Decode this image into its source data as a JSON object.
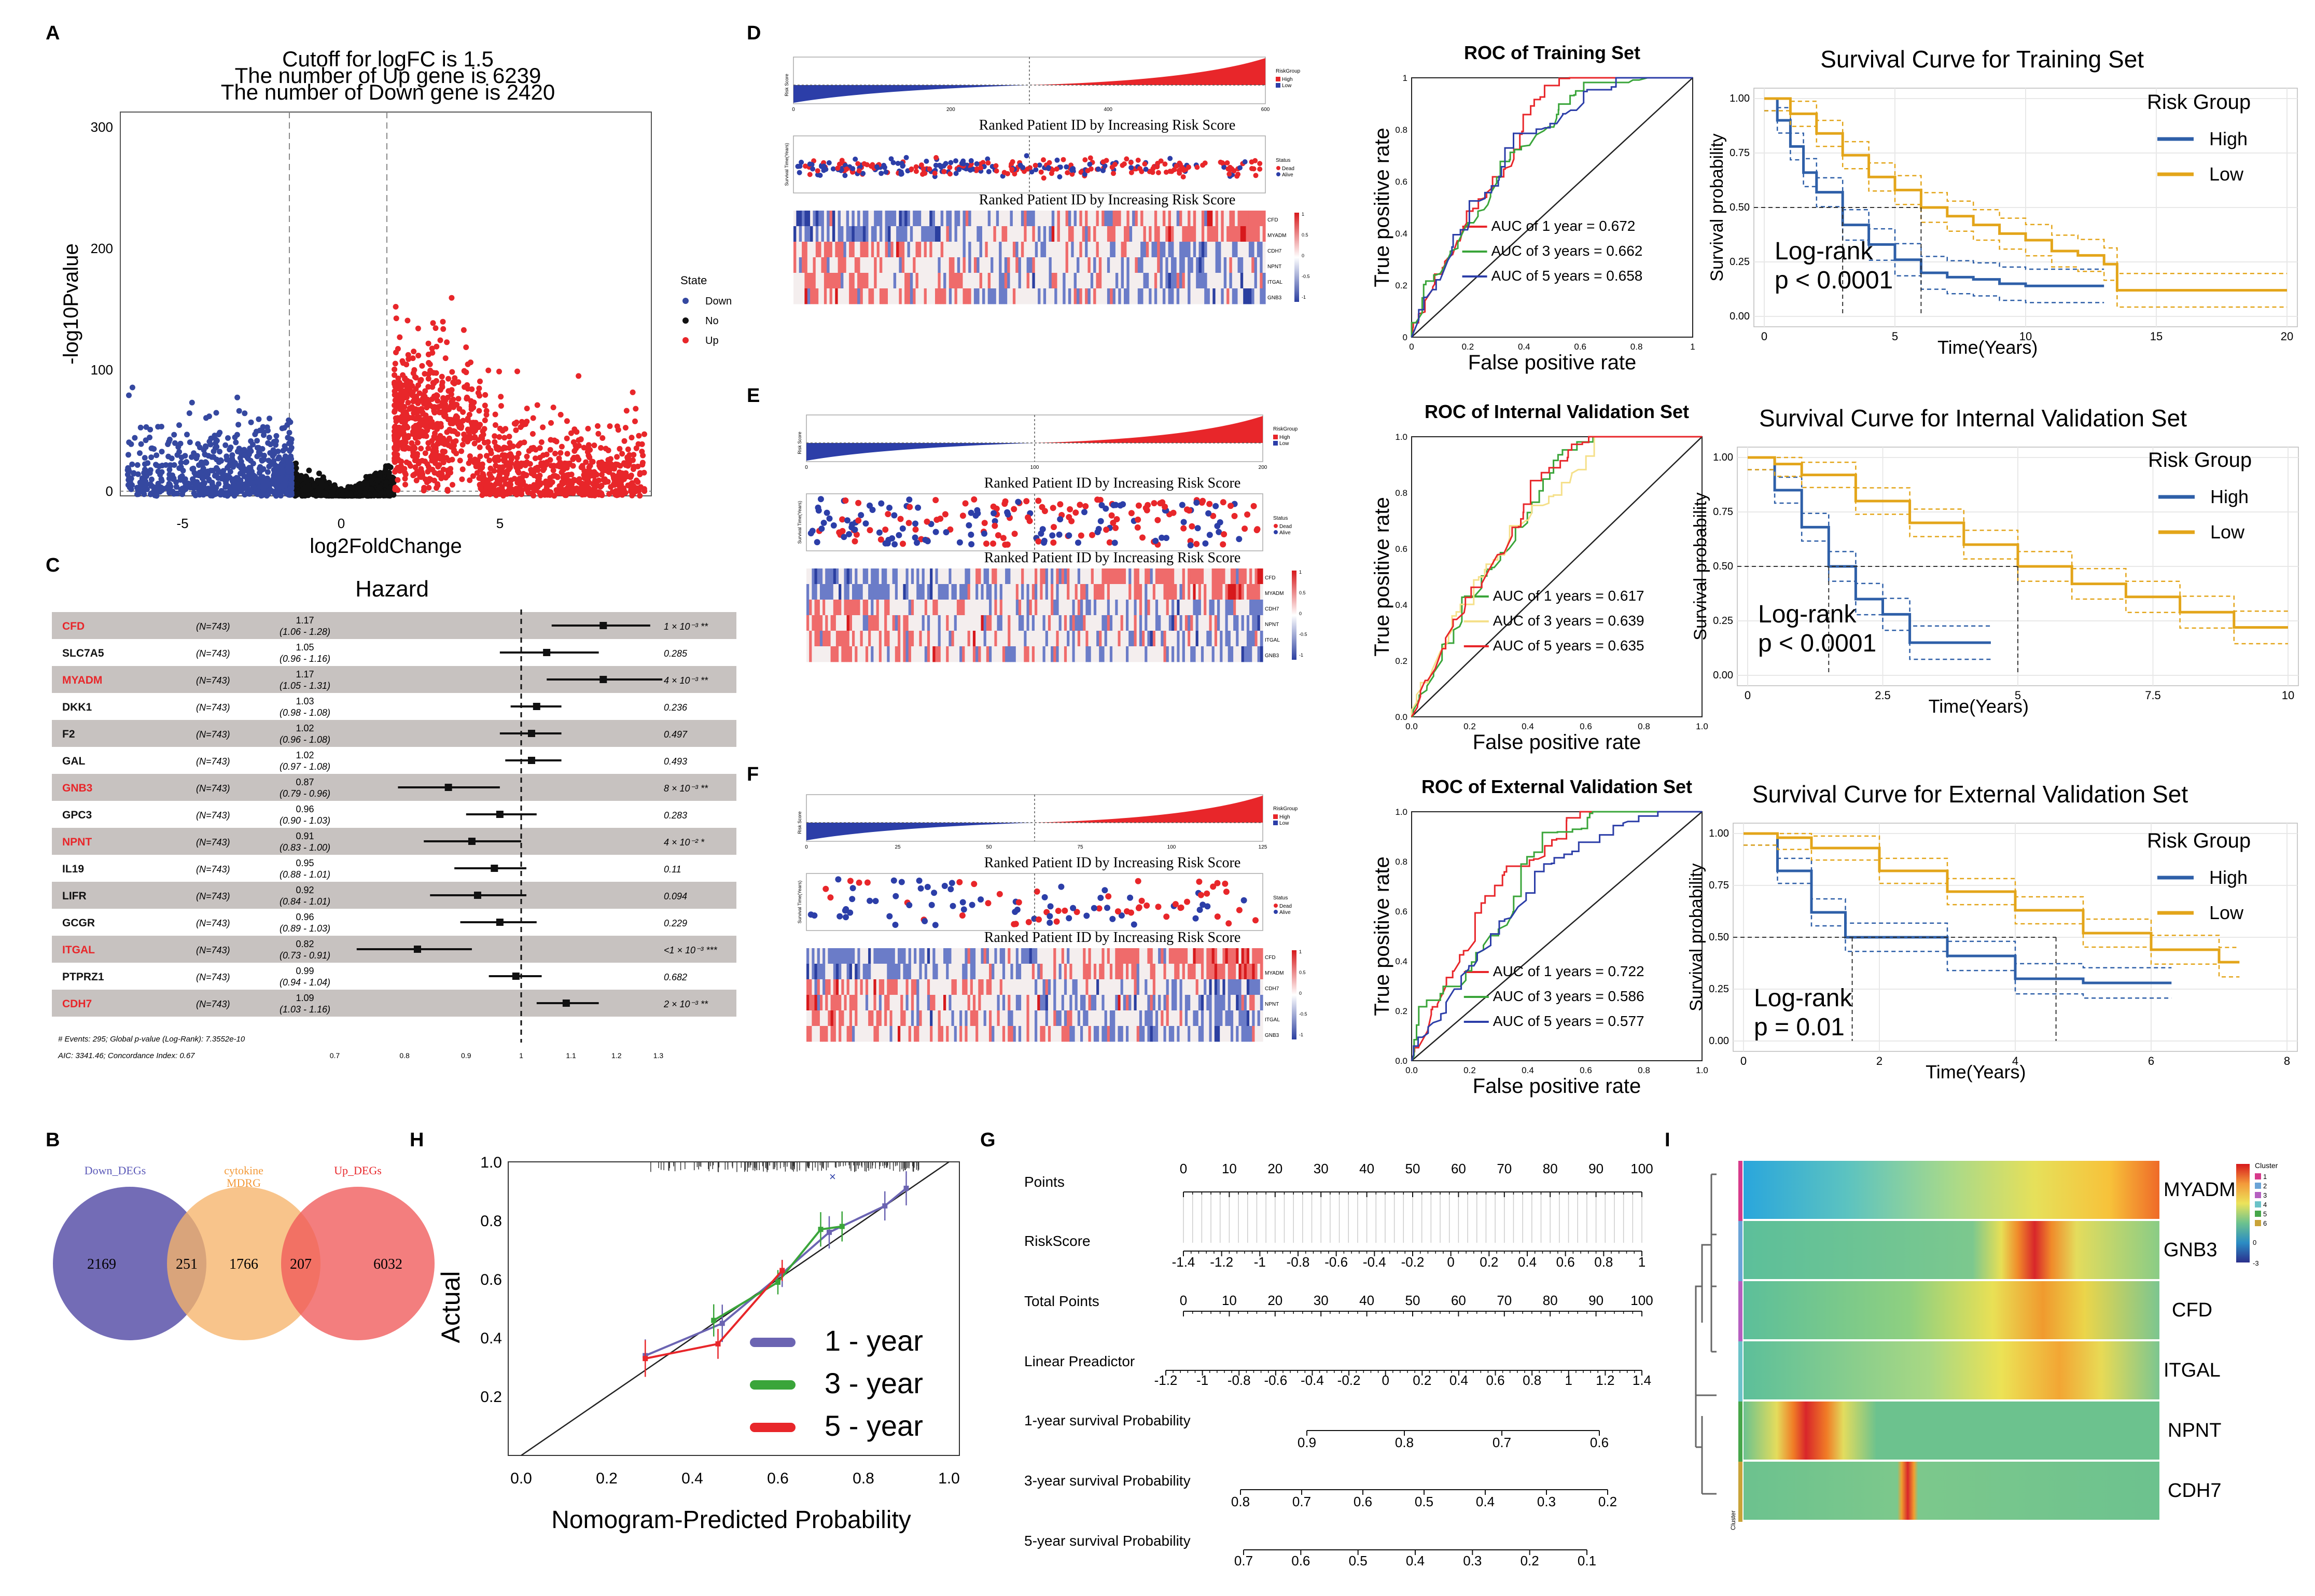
{
  "panels": {
    "A": "A",
    "B": "B",
    "C": "C",
    "D": "D",
    "E": "E",
    "F": "F",
    "G": "G",
    "H": "H",
    "I": "I"
  },
  "colors": {
    "down": "#3548a0",
    "no": "#111111",
    "up": "#e8262a",
    "high": "#2e5fa8",
    "low": "#e3a51a",
    "red": "#e8262a",
    "green": "#3aa53a",
    "blue": "#2c3ea8",
    "yellow": "#f5e08a",
    "purple": "#6b64b2",
    "orange": "#f6b46a",
    "salmon": "#f05a5a"
  },
  "volcano": {
    "title": [
      "Cutoff for logFC is 1.5",
      "The number of Up gene is 6239",
      "The number of Down gene is 2420"
    ],
    "xlabel": "log2FoldChange",
    "ylabel": "-log10Pvalue",
    "xticks": [
      "-5",
      "0",
      "5"
    ],
    "yticks": [
      "0",
      "100",
      "200",
      "300"
    ],
    "legend_title": "State",
    "legend": [
      "Down",
      "No",
      "Up"
    ]
  },
  "chart_data": [
    {
      "type": "scatter",
      "id": "volcano",
      "title": "Cutoff for logFC is 1.5",
      "xlabel": "log2FoldChange",
      "ylabel": "-log10Pvalue",
      "xlim": [
        -6.5,
        9
      ],
      "ylim": [
        0,
        315
      ],
      "thresholds": {
        "logFC": 1.5
      },
      "series": [
        {
          "name": "Down",
          "count": 2420
        },
        {
          "name": "No"
        },
        {
          "name": "Up",
          "count": 6239
        }
      ]
    },
    {
      "type": "forest",
      "id": "hazard",
      "title": "Hazard",
      "genes": [
        "CFD",
        "SLC7A5",
        "MYADM",
        "DKK1",
        "F2",
        "GAL",
        "GNB3",
        "GPC3",
        "NPNT",
        "IL19",
        "LIFR",
        "GCGR",
        "ITGAL",
        "PTPRZ1",
        "CDH7"
      ],
      "hr": [
        1.17,
        1.05,
        1.17,
        1.03,
        1.02,
        1.02,
        0.87,
        0.96,
        0.91,
        0.95,
        0.92,
        0.96,
        0.82,
        0.99,
        1.09
      ],
      "lo": [
        1.06,
        0.96,
        1.05,
        0.98,
        0.96,
        0.97,
        0.79,
        0.9,
        0.83,
        0.88,
        0.84,
        0.89,
        0.73,
        0.94,
        1.03
      ],
      "hi": [
        1.28,
        1.16,
        1.31,
        1.08,
        1.08,
        1.08,
        0.96,
        1.03,
        1.0,
        1.01,
        1.01,
        1.03,
        0.91,
        1.04,
        1.16
      ]
    },
    {
      "type": "venn",
      "id": "venn",
      "sets": [
        "Down_DEGs",
        "cytokine MDRG",
        "Up_DEGs"
      ],
      "values": [
        2169,
        251,
        1766,
        207,
        6032
      ]
    },
    {
      "type": "line",
      "id": "roc_training",
      "title": "ROC of Training Set",
      "series": [
        {
          "name": "AUC of 1 year = 0.672",
          "auc": 0.672
        },
        {
          "name": "AUC of 3 years = 0.662",
          "auc": 0.662
        },
        {
          "name": "AUC of 5 years = 0.658",
          "auc": 0.658
        }
      ]
    },
    {
      "type": "line",
      "id": "roc_internal",
      "title": "ROC of Internal Validation Set",
      "series": [
        {
          "name": "AUC of 1 years = 0.617",
          "auc": 0.617
        },
        {
          "name": "AUC of 3 years = 0.639",
          "auc": 0.639
        },
        {
          "name": "AUC of 5 years = 0.635",
          "auc": 0.635
        }
      ]
    },
    {
      "type": "line",
      "id": "roc_external",
      "title": "ROC of External Validation Set",
      "series": [
        {
          "name": "AUC of 1 years = 0.722",
          "auc": 0.722
        },
        {
          "name": "AUC of 3 years = 0.586",
          "auc": 0.586
        },
        {
          "name": "AUC of 5 years = 0.577",
          "auc": 0.577
        }
      ]
    },
    {
      "type": "line",
      "id": "km_training",
      "title": "Survival Curve for Training Set",
      "xlim": [
        0,
        20
      ],
      "ylim": [
        0,
        1
      ],
      "pvalue": "p < 0.0001",
      "series": [
        {
          "name": "High",
          "x": [
            0,
            0.5,
            1,
            1.5,
            2,
            3,
            4,
            5,
            6,
            7,
            8,
            9,
            10,
            12,
            13
          ],
          "y": [
            1,
            0.9,
            0.78,
            0.66,
            0.57,
            0.42,
            0.33,
            0.26,
            0.2,
            0.18,
            0.17,
            0.15,
            0.14,
            0.14,
            0.14
          ]
        },
        {
          "name": "Low",
          "x": [
            0,
            1,
            2,
            3,
            4,
            5,
            6,
            7,
            8,
            9,
            10,
            11,
            12,
            13,
            13.5,
            20
          ],
          "y": [
            1,
            0.93,
            0.84,
            0.74,
            0.64,
            0.58,
            0.5,
            0.46,
            0.42,
            0.38,
            0.35,
            0.3,
            0.28,
            0.24,
            0.12,
            0.12
          ]
        }
      ]
    },
    {
      "type": "line",
      "id": "km_internal",
      "title": "Survival Curve for Internal Validation Set",
      "xlim": [
        0,
        10
      ],
      "ylim": [
        0,
        1
      ],
      "pvalue": "p < 0.0001",
      "series": [
        {
          "name": "High",
          "x": [
            0,
            0.5,
            1,
            1.5,
            2,
            2.5,
            3,
            3.5,
            4,
            4.5
          ],
          "y": [
            1,
            0.85,
            0.68,
            0.5,
            0.35,
            0.28,
            0.15,
            0.15,
            0.15,
            0.15
          ]
        },
        {
          "name": "Low",
          "x": [
            0,
            0.5,
            1,
            2,
            3,
            4,
            5,
            6,
            7,
            8,
            9,
            10
          ],
          "y": [
            1,
            0.97,
            0.92,
            0.8,
            0.7,
            0.6,
            0.5,
            0.42,
            0.36,
            0.29,
            0.22,
            0.22
          ]
        }
      ]
    },
    {
      "type": "line",
      "id": "km_external",
      "title": "Survival Curve for External Validation Set",
      "xlim": [
        0,
        8
      ],
      "ylim": [
        0,
        1
      ],
      "pvalue": "p = 0.01",
      "series": [
        {
          "name": "High",
          "x": [
            0,
            0.5,
            1,
            1.5,
            2,
            3,
            4,
            5,
            6,
            6.3
          ],
          "y": [
            1,
            0.82,
            0.62,
            0.5,
            0.5,
            0.41,
            0.3,
            0.28,
            0.28,
            0.28
          ]
        },
        {
          "name": "Low",
          "x": [
            0,
            0.5,
            1,
            2,
            3,
            4,
            5,
            6,
            7,
            7.3
          ],
          "y": [
            1,
            0.98,
            0.93,
            0.82,
            0.72,
            0.63,
            0.52,
            0.44,
            0.38,
            0.38
          ]
        }
      ]
    },
    {
      "type": "line",
      "id": "calibration",
      "xlabel": "Nomogram-Predicted Probability",
      "ylabel": "Actual",
      "xlim": [
        0,
        1
      ],
      "ylim": [
        0,
        1
      ],
      "series": [
        {
          "name": "1 - year",
          "x": [
            0.29,
            0.47,
            0.61,
            0.72,
            0.85,
            0.9
          ],
          "y": [
            0.34,
            0.45,
            0.62,
            0.76,
            0.85,
            0.91
          ]
        },
        {
          "name": "3 - year",
          "x": [
            0.45,
            0.6,
            0.7,
            0.75
          ],
          "y": [
            0.46,
            0.59,
            0.77,
            0.78
          ]
        },
        {
          "name": "5 - year",
          "x": [
            0.29,
            0.46,
            0.61
          ],
          "y": [
            0.33,
            0.38,
            0.63
          ]
        }
      ]
    },
    {
      "type": "heatmap",
      "id": "cluster_heatmap",
      "rows": [
        "MYADM",
        "GNB3",
        "CFD",
        "ITGAL",
        "NPNT",
        "CDH7"
      ],
      "legend_title": "Cluster",
      "legend": [
        "1",
        "2",
        "3",
        "4",
        "5",
        "6"
      ]
    }
  ],
  "risk": {
    "ylabel": "Risk Score",
    "ylabel2": "Survival Time(Years)",
    "caption": "Ranked Patient ID by Increasing Risk Score",
    "riskgroup": "RiskGroup",
    "high": "High",
    "low": "Low",
    "status": "Status",
    "dead": "Dead",
    "alive": "Alive",
    "genes": [
      "CFD",
      "MYADM",
      "CDH7",
      "NPNT",
      "ITGAL",
      "GNB3"
    ],
    "scale": [
      "1",
      "0.5",
      "0",
      "-0.5",
      "-1"
    ]
  },
  "roc": {
    "train_title": "ROC of Training Set",
    "int_title": "ROC of Internal Validation Set",
    "ext_title": "ROC of External Validation Set",
    "xlabel": "False positive rate",
    "ylabel": "True positive rate",
    "ticks": [
      "0",
      "0.2",
      "0.4",
      "0.6",
      "0.8",
      "1"
    ],
    "ticks_b": [
      "0.0",
      "0.2",
      "0.4",
      "0.6",
      "0.8",
      "1.0"
    ],
    "train_legend": [
      "AUC of 1 year = 0.672",
      "AUC of 3 years = 0.662",
      "AUC of 5 years = 0.658"
    ],
    "int_legend": [
      "AUC of 1 years = 0.617",
      "AUC of 3 years = 0.639",
      "AUC of 5 years = 0.635"
    ],
    "ext_legend": [
      "AUC of 1 years = 0.722",
      "AUC of 3 years = 0.586",
      "AUC of 5 years = 0.577"
    ]
  },
  "km": {
    "train_title": "Survival Curve for Training Set",
    "int_title": "Survival Curve for Internal Validation Set",
    "ext_title": "Survival Curve for External Validation Set",
    "ylabel": "Survival probability",
    "xlabel": "Time(Years)",
    "group": "Risk Group",
    "high": "High",
    "low": "Low",
    "logrank": "Log-rank",
    "p_train": "p < 0.0001",
    "p_int": "p < 0.0001",
    "p_ext": "p = 0.01",
    "yticks": [
      "0.00",
      "0.25",
      "0.50",
      "0.75",
      "1.00"
    ],
    "xt_train": [
      "0",
      "5",
      "10",
      "15",
      "20"
    ],
    "xt_int": [
      "0",
      "2.5",
      "5",
      "7.5",
      "10"
    ],
    "xt_ext": [
      "0",
      "2",
      "4",
      "6",
      "8"
    ]
  },
  "forest": {
    "title": "Hazard",
    "n": "(N=743)",
    "genes": [
      "CFD",
      "SLC7A5",
      "MYADM",
      "DKK1",
      "F2",
      "GAL",
      "GNB3",
      "GPC3",
      "NPNT",
      "IL19",
      "LIFR",
      "GCGR",
      "ITGAL",
      "PTPRZ1",
      "CDH7"
    ],
    "hr": [
      "1.17",
      "1.05",
      "1.17",
      "1.03",
      "1.02",
      "1.02",
      "0.87",
      "0.96",
      "0.91",
      "0.95",
      "0.92",
      "0.96",
      "0.82",
      "0.99",
      "1.09"
    ],
    "ci": [
      "(1.06 - 1.28)",
      "(0.96 - 1.16)",
      "(1.05 - 1.31)",
      "(0.98 - 1.08)",
      "(0.96 - 1.08)",
      "(0.97 - 1.08)",
      "(0.79 - 0.96)",
      "(0.90 - 1.03)",
      "(0.83 - 1.00)",
      "(0.88 - 1.01)",
      "(0.84 - 1.01)",
      "(0.89 - 1.03)",
      "(0.73 - 0.91)",
      "(0.94 - 1.04)",
      "(1.03 - 1.16)"
    ],
    "pval": [
      "1 × 10⁻³ **",
      "0.285",
      "4 × 10⁻³ **",
      "0.236",
      "0.497",
      "0.493",
      "8 × 10⁻³ **",
      "0.283",
      "4 × 10⁻² *",
      "0.11",
      "0.094",
      "0.229",
      "<1 × 10⁻³ ***",
      "0.682",
      "2 × 10⁻³ **"
    ],
    "footer1": "# Events: 295; Global p-value (Log-Rank): 7.3552e-10",
    "footer2": "AIC: 3341.46; Concordance Index: 0.67",
    "xticks": [
      "0.7",
      "0.8",
      "0.9",
      "1",
      "1.1",
      "1.2",
      "1.3"
    ]
  },
  "venn": {
    "down": "Down_DEGs",
    "cyto1": "cytokine",
    "cyto2": "MDRG",
    "up": "Up_DEGs",
    "v1": "2169",
    "v2": "251",
    "v3": "1766",
    "v4": "207",
    "v5": "6032"
  },
  "calib": {
    "xlabel": "Nomogram-Predicted Probability",
    "ylabel": "Actual",
    "legend": [
      "1 - year",
      "3 - year",
      "5 - year"
    ],
    "xticks": [
      "0.0",
      "0.2",
      "0.4",
      "0.6",
      "0.8",
      "1.0"
    ],
    "yticks": [
      "0.2",
      "0.4",
      "0.6",
      "0.8",
      "1.0"
    ]
  },
  "nomo": {
    "labels": [
      "Points",
      "RiskScore",
      "Total Points",
      "Linear Preadictor",
      "1-year survival Probability",
      "3-year survival Probability",
      "5-year survival Probability"
    ],
    "points": [
      "0",
      "10",
      "20",
      "30",
      "40",
      "50",
      "60",
      "70",
      "80",
      "90",
      "100"
    ],
    "risk": [
      "-1.4",
      "-1.2",
      "-1",
      "-0.8",
      "-0.6",
      "-0.4",
      "-0.2",
      "0",
      "0.2",
      "0.4",
      "0.6",
      "0.8",
      "1"
    ],
    "lp": [
      "-1.2",
      "-1",
      "-0.8",
      "-0.6",
      "-0.4",
      "-0.2",
      "0",
      "0.2",
      "0.4",
      "0.6",
      "0.8",
      "1",
      "1.2",
      "1.4"
    ],
    "s1": [
      "0.9",
      "0.8",
      "0.7",
      "0.6"
    ],
    "s3": [
      "0.8",
      "0.7",
      "0.6",
      "0.5",
      "0.4",
      "0.3",
      "0.2"
    ],
    "s5": [
      "0.7",
      "0.6",
      "0.5",
      "0.4",
      "0.3",
      "0.2",
      "0.1"
    ]
  },
  "heat": {
    "rows": [
      "MYADM",
      "GNB3",
      "CFD",
      "ITGAL",
      "NPNT",
      "CDH7"
    ],
    "legend_title": "Cluster",
    "clusters": [
      "1",
      "2",
      "3",
      "4",
      "5",
      "6"
    ],
    "scale": [
      "3",
      "2",
      "1",
      "0",
      "-1",
      "-2",
      "-3"
    ],
    "side_label": "Cluster"
  }
}
